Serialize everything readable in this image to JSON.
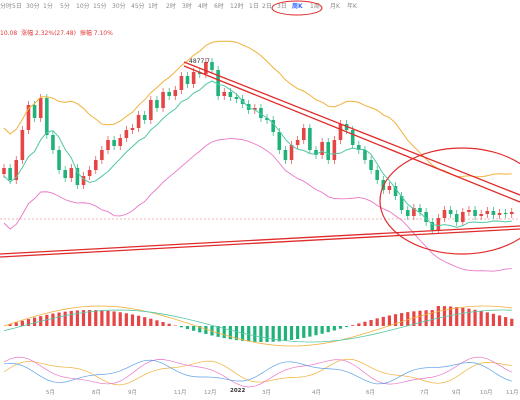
{
  "toolbar": {
    "timeframes": [
      "分时",
      "5日",
      "30分",
      "1分",
      "5分",
      "10分",
      "15分",
      "30分",
      "45分",
      "1时",
      "2时",
      "3时",
      "4时",
      "6时",
      "12时",
      "1日",
      "2日",
      "3日",
      "周K",
      "1周",
      "月K",
      "年K"
    ],
    "active": "周K"
  },
  "info": {
    "prefix": "10.08",
    "change": "涨幅 2.32%(27.48)",
    "amplitude": "振幅 7.10%"
  },
  "price_label": "4877.7",
  "x_axis": {
    "labels": [
      "5月",
      "8月",
      "9月",
      "11月",
      "12月",
      "2022",
      "3月",
      "4月",
      "6月",
      "7月",
      "9月",
      "10月",
      "11月"
    ],
    "bold": "2022"
  },
  "colors": {
    "up": "#e64545",
    "down": "#1fb37a",
    "ma_slow": "#f0b13a",
    "ma_fast": "#52c7a5",
    "ma_pink": "#e878c8",
    "trendline": "#e02b2b",
    "highlight": "#e02b2b",
    "macd_dif": "#f0b13a",
    "macd_dea": "#52c7a5"
  }
}
